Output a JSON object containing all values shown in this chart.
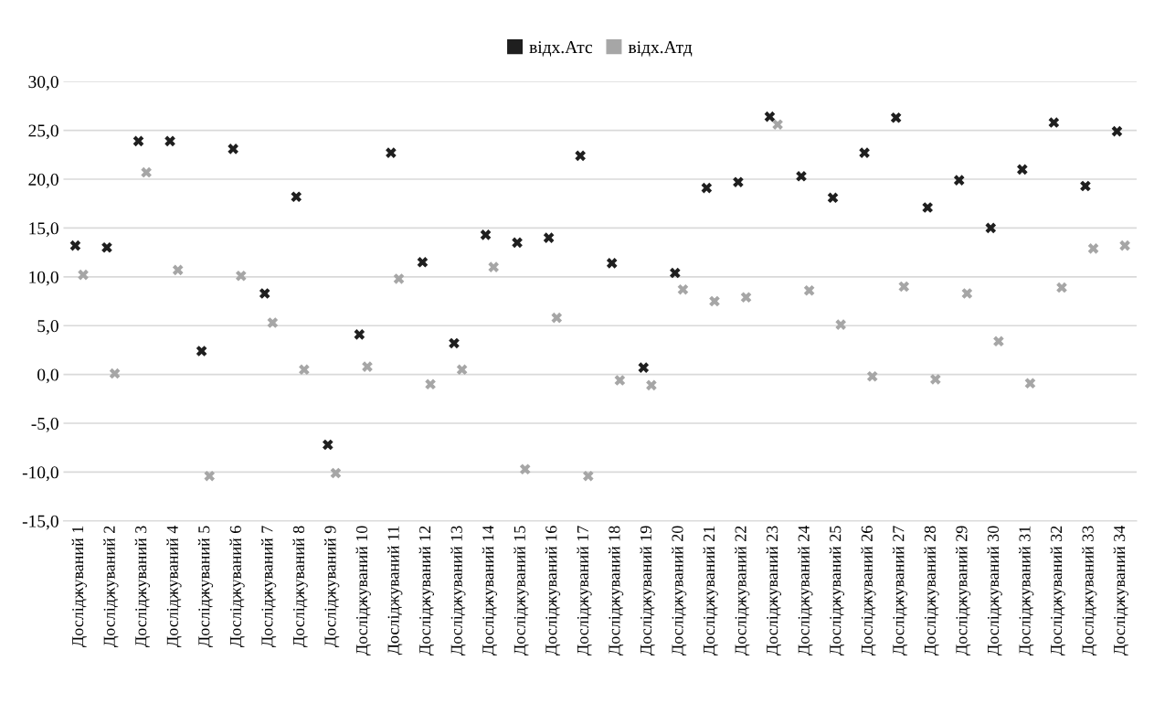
{
  "chart_data": {
    "type": "scatter",
    "categories": [
      "Досліджуваний 1",
      "Досліджуваний 2",
      "Досліджуваний 3",
      "Досліджуваний 4",
      "Досліджуваний 5",
      "Досліджуваний 6",
      "Досліджуваний 7",
      "Досліджуваний 8",
      "Досліджуваний 9",
      "Досліджуваний 10",
      "Досліджуваний 11",
      "Досліджуваний 12",
      "Досліджуваний 13",
      "Досліджуваний 14",
      "Досліджуваний 15",
      "Досліджуваний 16",
      "Досліджуваний 17",
      "Досліджуваний 18",
      "Досліджуваний 19",
      "Досліджуваний 20",
      "Досліджуваний 21",
      "Досліджуваний 22",
      "Досліджуваний 23",
      "Досліджуваний 24",
      "Досліджуваний 25",
      "Досліджуваний 26",
      "Досліджуваний 27",
      "Досліджуваний 28",
      "Досліджуваний 29",
      "Досліджуваний 30",
      "Досліджуваний 31",
      "Досліджуваний 32",
      "Досліджуваний 33",
      "Досліджуваний 34"
    ],
    "series": [
      {
        "name": "відх.Атс",
        "color": "#1f1f1f",
        "values": [
          13.2,
          13.0,
          23.9,
          23.9,
          2.4,
          23.1,
          8.3,
          18.2,
          -7.2,
          4.1,
          22.7,
          11.5,
          3.2,
          14.3,
          13.5,
          14.0,
          22.4,
          11.4,
          0.7,
          10.4,
          19.1,
          19.7,
          26.4,
          20.3,
          18.1,
          22.7,
          26.3,
          17.1,
          19.9,
          15.0,
          21.0,
          25.8,
          19.3,
          24.9
        ]
      },
      {
        "name": "відх.Атд",
        "color": "#a6a6a6",
        "values": [
          10.2,
          0.1,
          20.7,
          10.7,
          -10.4,
          10.1,
          5.3,
          0.5,
          -10.1,
          0.8,
          9.8,
          -1.0,
          0.5,
          11.0,
          -9.7,
          5.8,
          -10.4,
          -0.6,
          -1.1,
          8.7,
          7.5,
          7.9,
          25.6,
          8.6,
          5.1,
          -0.2,
          9.0,
          -0.5,
          8.3,
          3.4,
          -0.9,
          8.9,
          12.9,
          13.2
        ]
      }
    ],
    "ylim": [
      -15,
      30
    ],
    "yticks": [
      {
        "value": -15,
        "label": "-15,0"
      },
      {
        "value": -10,
        "label": "-10,0"
      },
      {
        "value": -5,
        "label": "-5,0"
      },
      {
        "value": 0,
        "label": "0,0"
      },
      {
        "value": 5,
        "label": "5,0"
      },
      {
        "value": 10,
        "label": "10,0"
      },
      {
        "value": 15,
        "label": "15,0"
      },
      {
        "value": 20,
        "label": "20,0"
      },
      {
        "value": 25,
        "label": "25,0"
      },
      {
        "value": 30,
        "label": "30,0"
      }
    ],
    "grid": "y",
    "legend": "top",
    "marker": "cross"
  }
}
